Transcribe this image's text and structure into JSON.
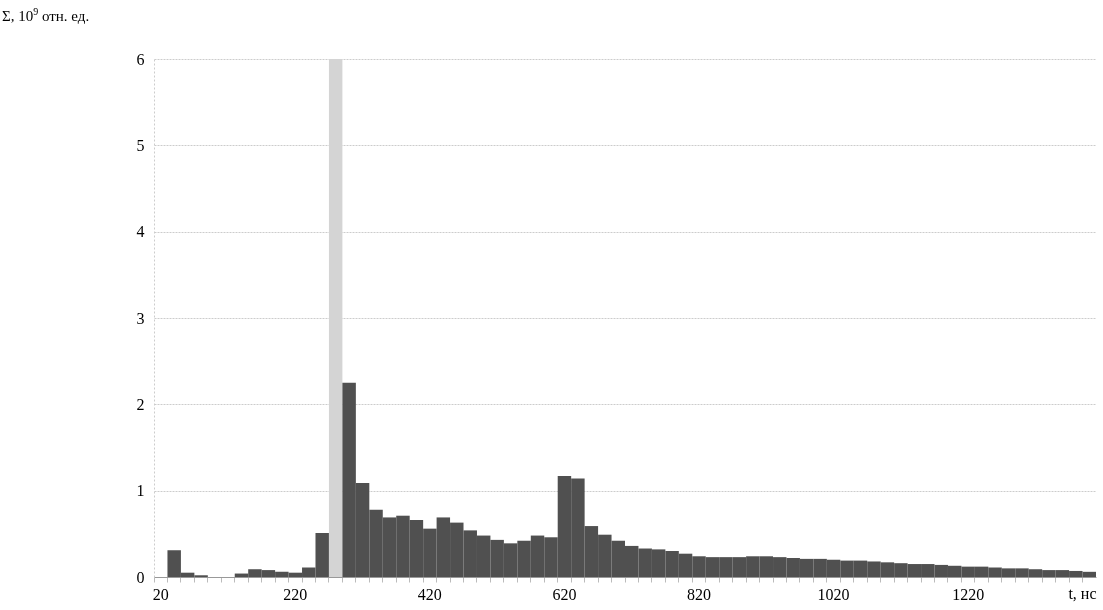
{
  "chart_data": {
    "type": "bar",
    "xlabel": "t, нс",
    "ylabel": "Σ, 10$^{9}$ отн. ед.",
    "categories": [
      "20",
      null,
      null,
      null,
      null,
      null,
      null,
      null,
      null,
      null,
      "220",
      null,
      null,
      null,
      null,
      null,
      null,
      null,
      null,
      null,
      "420",
      null,
      null,
      null,
      null,
      null,
      null,
      null,
      null,
      null,
      "620",
      null,
      null,
      null,
      null,
      null,
      null,
      null,
      null,
      null,
      "820",
      null,
      null,
      null,
      null,
      null,
      null,
      null,
      null,
      null,
      "1020",
      null,
      null,
      null,
      null,
      null,
      null,
      null,
      null,
      null,
      "1220",
      null,
      null,
      null,
      null,
      null,
      null,
      null,
      null,
      null
    ],
    "values": [
      0,
      0.31,
      0.05,
      0.02,
      0,
      0,
      0.04,
      0.09,
      0.08,
      0.06,
      0.05,
      0.11,
      0.51,
      6,
      2.25,
      1.09,
      0.78,
      0.69,
      0.71,
      0.66,
      0.56,
      0.69,
      0.63,
      0.54,
      0.48,
      0.43,
      0.39,
      0.42,
      0.48,
      0.46,
      1.17,
      1.14,
      0.59,
      0.49,
      0.42,
      0.36,
      0.33,
      0.32,
      0.3,
      0.27,
      0.24,
      0.23,
      0.23,
      0.23,
      0.24,
      0.24,
      0.23,
      0.22,
      0.21,
      0.21,
      0.2,
      0.19,
      0.19,
      0.18,
      0.17,
      0.16,
      0.15,
      0.15,
      0.14,
      0.13,
      0.12,
      0.12,
      0.11,
      0.1,
      0.1,
      0.09,
      0.08,
      0.08,
      0.07,
      0.06
    ],
    "colors": [
      "#505050",
      "#505050",
      "#505050",
      "#505050",
      "#505050",
      "#505050",
      "#505050",
      "#505050",
      "#505050",
      "#505050",
      "#505050",
      "#505050",
      "#505050",
      "#d4d4d4",
      "#505050",
      "#505050",
      "#505050",
      "#505050",
      "#505050",
      "#505050",
      "#505050",
      "#505050",
      "#505050",
      "#505050",
      "#505050",
      "#505050",
      "#505050",
      "#505050",
      "#505050",
      "#505050",
      "#505050",
      "#505050",
      "#505050",
      "#505050",
      "#505050",
      "#505050",
      "#505050",
      "#505050",
      "#505050",
      "#505050",
      "#505050",
      "#505050",
      "#505050",
      "#505050",
      "#505050",
      "#505050",
      "#505050",
      "#505050",
      "#505050",
      "#505050",
      "#505050",
      "#505050",
      "#505050",
      "#505050",
      "#505050",
      "#505050",
      "#505050",
      "#505050",
      "#505050",
      "#505050",
      "#505050",
      "#505050",
      "#505050",
      "#505050",
      "#505050",
      "#505050",
      "#505050",
      "#505050",
      "#505050",
      "#505050"
    ],
    "ylim": [
      0,
      6
    ],
    "yticks": [
      0,
      1,
      2,
      3,
      4,
      5,
      6
    ],
    "grid": "y"
  }
}
